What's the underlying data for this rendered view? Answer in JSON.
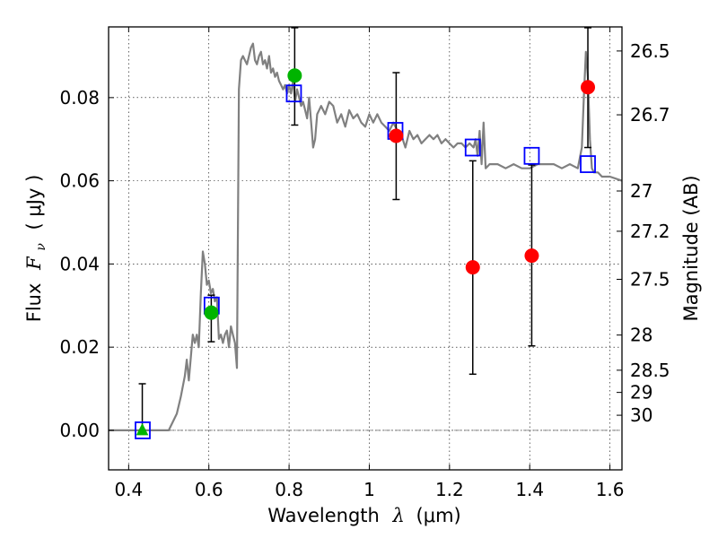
{
  "chart_data": {
    "type": "scatter",
    "xlabel_prefix": "Wavelength",
    "xlabel_math": "λ",
    "xlabel_unit": "(μm)",
    "ylabel_prefix": "Flux",
    "ylabel_math": "F",
    "ylabel_sub": "ν",
    "ylabel_unit": "( μJy )",
    "y2label": "Magnitude (AB)",
    "xlim": [
      0.35,
      1.63
    ],
    "ylim": [
      -0.0095,
      0.097
    ],
    "x_ticks": [
      {
        "value": 0.4,
        "label": "0.4"
      },
      {
        "value": 0.6,
        "label": "0.6"
      },
      {
        "value": 0.8,
        "label": "0.8"
      },
      {
        "value": 1.0,
        "label": "1"
      },
      {
        "value": 1.2,
        "label": "1.2"
      },
      {
        "value": 1.4,
        "label": "1.4"
      },
      {
        "value": 1.6,
        "label": "1.6"
      }
    ],
    "y_ticks": [
      {
        "value": 0.0,
        "label": "0.00"
      },
      {
        "value": 0.02,
        "label": "0.02"
      },
      {
        "value": 0.04,
        "label": "0.04"
      },
      {
        "value": 0.06,
        "label": "0.06"
      },
      {
        "value": 0.08,
        "label": "0.08"
      }
    ],
    "y2_ticks": [
      {
        "value": 26.5,
        "label": "26.5"
      },
      {
        "value": 26.7,
        "label": "26.7"
      },
      {
        "value": 27.0,
        "label": "27"
      },
      {
        "value": 27.2,
        "label": "27.2"
      },
      {
        "value": 27.5,
        "label": "27.5"
      },
      {
        "value": 28.0,
        "label": "28"
      },
      {
        "value": 28.5,
        "label": "28.5"
      },
      {
        "value": 29.0,
        "label": "29"
      },
      {
        "value": 30.0,
        "label": "30"
      }
    ],
    "grid": true,
    "zero_line": true,
    "colors": {
      "model": "#808080",
      "model_box": "#0000ff",
      "green": "#00b400",
      "red": "#ff0000",
      "errorbar": "#000000"
    },
    "model_spectrum": {
      "x": [
        0.35,
        0.4,
        0.45,
        0.48,
        0.5,
        0.52,
        0.53,
        0.54,
        0.545,
        0.55,
        0.56,
        0.565,
        0.57,
        0.575,
        0.58,
        0.585,
        0.59,
        0.595,
        0.6,
        0.605,
        0.61,
        0.615,
        0.62,
        0.625,
        0.63,
        0.635,
        0.64,
        0.645,
        0.65,
        0.655,
        0.66,
        0.665,
        0.67,
        0.675,
        0.68,
        0.685,
        0.69,
        0.695,
        0.7,
        0.705,
        0.71,
        0.715,
        0.72,
        0.725,
        0.73,
        0.735,
        0.74,
        0.745,
        0.75,
        0.755,
        0.76,
        0.765,
        0.77,
        0.775,
        0.78,
        0.785,
        0.79,
        0.795,
        0.8,
        0.805,
        0.81,
        0.815,
        0.82,
        0.825,
        0.83,
        0.835,
        0.84,
        0.845,
        0.85,
        0.855,
        0.86,
        0.865,
        0.87,
        0.875,
        0.88,
        0.89,
        0.9,
        0.91,
        0.92,
        0.93,
        0.94,
        0.95,
        0.96,
        0.97,
        0.98,
        0.99,
        1.0,
        1.01,
        1.02,
        1.03,
        1.04,
        1.05,
        1.06,
        1.07,
        1.08,
        1.09,
        1.1,
        1.11,
        1.12,
        1.13,
        1.14,
        1.15,
        1.16,
        1.17,
        1.18,
        1.19,
        1.2,
        1.21,
        1.22,
        1.23,
        1.24,
        1.25,
        1.26,
        1.265,
        1.27,
        1.275,
        1.28,
        1.285,
        1.29,
        1.3,
        1.32,
        1.34,
        1.36,
        1.38,
        1.4,
        1.42,
        1.44,
        1.46,
        1.48,
        1.5,
        1.52,
        1.53,
        1.535,
        1.54,
        1.545,
        1.55,
        1.555,
        1.56,
        1.57,
        1.58,
        1.6,
        1.63
      ],
      "y": [
        0.0,
        0.0,
        0.0,
        0.0,
        0.0,
        0.004,
        0.008,
        0.013,
        0.017,
        0.012,
        0.023,
        0.021,
        0.023,
        0.02,
        0.033,
        0.043,
        0.04,
        0.035,
        0.036,
        0.033,
        0.034,
        0.031,
        0.032,
        0.022,
        0.023,
        0.021,
        0.023,
        0.024,
        0.02,
        0.025,
        0.023,
        0.021,
        0.015,
        0.082,
        0.089,
        0.09,
        0.089,
        0.088,
        0.09,
        0.092,
        0.093,
        0.089,
        0.088,
        0.09,
        0.091,
        0.088,
        0.089,
        0.087,
        0.09,
        0.086,
        0.087,
        0.085,
        0.086,
        0.084,
        0.083,
        0.082,
        0.083,
        0.081,
        0.083,
        0.081,
        0.084,
        0.079,
        0.082,
        0.08,
        0.078,
        0.079,
        0.077,
        0.075,
        0.08,
        0.074,
        0.068,
        0.07,
        0.076,
        0.077,
        0.078,
        0.076,
        0.079,
        0.078,
        0.074,
        0.076,
        0.073,
        0.077,
        0.075,
        0.076,
        0.074,
        0.073,
        0.076,
        0.074,
        0.076,
        0.074,
        0.073,
        0.072,
        0.074,
        0.072,
        0.071,
        0.068,
        0.072,
        0.07,
        0.071,
        0.069,
        0.07,
        0.071,
        0.07,
        0.071,
        0.069,
        0.07,
        0.069,
        0.068,
        0.069,
        0.069,
        0.068,
        0.069,
        0.068,
        0.07,
        0.066,
        0.072,
        0.064,
        0.074,
        0.063,
        0.064,
        0.064,
        0.063,
        0.064,
        0.063,
        0.063,
        0.064,
        0.064,
        0.064,
        0.063,
        0.064,
        0.063,
        0.068,
        0.08,
        0.091,
        0.085,
        0.07,
        0.063,
        0.062,
        0.062,
        0.061,
        0.061,
        0.06
      ]
    },
    "model_boxes": [
      {
        "x": 0.435,
        "y": 0.0
      },
      {
        "x": 0.607,
        "y": 0.03
      },
      {
        "x": 0.812,
        "y": 0.081
      },
      {
        "x": 1.065,
        "y": 0.072
      },
      {
        "x": 1.258,
        "y": 0.068
      },
      {
        "x": 1.405,
        "y": 0.066
      },
      {
        "x": 1.545,
        "y": 0.064
      }
    ],
    "green_points": [
      {
        "x": 0.606,
        "y": 0.0283,
        "err_low": 0.0213,
        "err_high": 0.0325
      },
      {
        "x": 0.814,
        "y": 0.0853,
        "err_low": 0.0734,
        "err_high": 0.0968
      }
    ],
    "green_upper_limit": {
      "x": 0.434,
      "y": 0.0,
      "err_high": 0.0112
    },
    "red_points": [
      {
        "x": 1.067,
        "y": 0.0708,
        "err_low": 0.0555,
        "err_high": 0.086
      },
      {
        "x": 1.258,
        "y": 0.0392,
        "err_low": 0.0135,
        "err_high": 0.0648
      },
      {
        "x": 1.405,
        "y": 0.042,
        "err_low": 0.0203,
        "err_high": 0.0638
      },
      {
        "x": 1.545,
        "y": 0.0825,
        "err_low": 0.068,
        "err_high": 0.0968
      }
    ]
  }
}
